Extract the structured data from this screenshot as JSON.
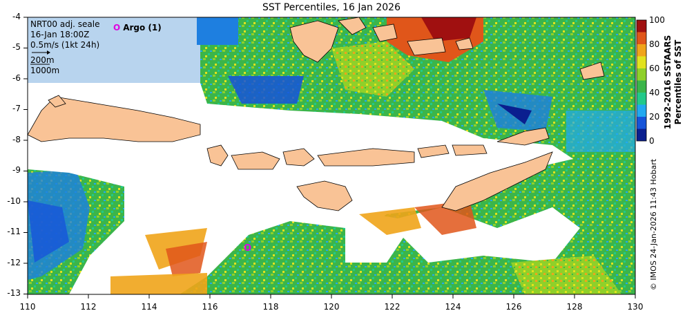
{
  "title": "SST Percentiles, 16 Jan 2026",
  "legend": {
    "line1": "NRT00 adj. seale",
    "line2": "16-Jan 18:00Z",
    "line3": "0.5m/s (1kt 24h)",
    "line4": "200m",
    "line5": "1000m"
  },
  "argo": {
    "marker": "O",
    "label": "Argo (1)"
  },
  "colorbar": {
    "title_line1": "1992-2016 SSTAARS",
    "title_line2": "Percentiles of SST",
    "ticks": [
      "100",
      "80",
      "60",
      "40",
      "20",
      "0"
    ],
    "colors": [
      "#0a1f8f",
      "#1654d9",
      "#22a9f0",
      "#22c98a",
      "#3bb54a",
      "#8fd02a",
      "#e2e21e",
      "#f0a41a",
      "#e0561a",
      "#a01010"
    ]
  },
  "axes": {
    "y_ticks": [
      "-4",
      "-5",
      "-6",
      "-7",
      "-8",
      "-9",
      "-10",
      "-11",
      "-12",
      "-13"
    ],
    "x_ticks": [
      "110",
      "112",
      "114",
      "116",
      "118",
      "120",
      "122",
      "124",
      "126",
      "128",
      "130"
    ]
  },
  "credit": "© IMOS 24-Jan-2026 11:43 Hobart"
}
